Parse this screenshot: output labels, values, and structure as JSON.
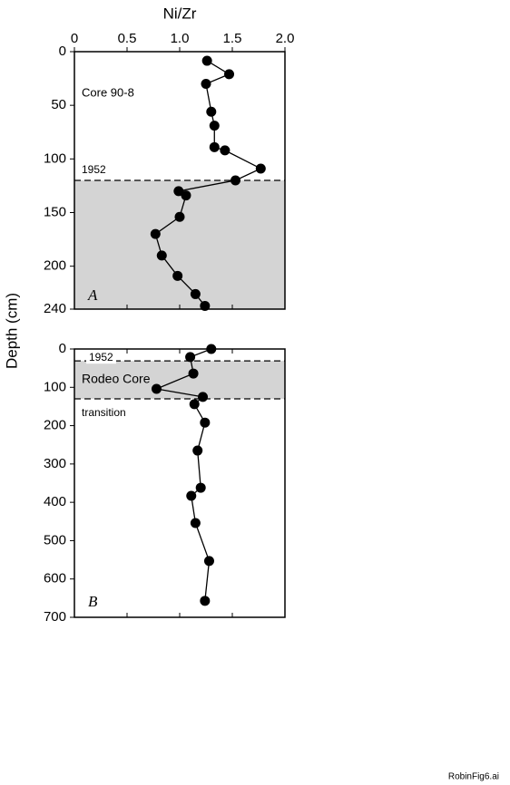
{
  "y_label": "Depth (cm)",
  "footer": "RobinFig6.ai",
  "chart_data": [
    {
      "type": "line",
      "x_label": "Ni/Zr",
      "panel_label": "A",
      "core_label": "Core 90-8",
      "xlim": [
        0,
        2
      ],
      "xticks": [
        0,
        0.5,
        {
          "value": 1,
          "label": "1.0"
        },
        1.5,
        {
          "value": 2,
          "label": "2.0"
        }
      ],
      "xtick_labels": true,
      "ylim": [
        0,
        240
      ],
      "y_inverted": true,
      "yticks": [
        0,
        50,
        100,
        150,
        200,
        240
      ],
      "shaded": [
        120,
        240
      ],
      "shade_color": "#d4d4d4",
      "reference_lines": [
        {
          "value": 120,
          "label": "1952"
        }
      ],
      "series": [
        {
          "color": "#000000",
          "x": [
            1.26,
            1.47,
            1.25,
            1.3,
            1.33,
            1.33,
            1.43,
            1.77,
            1.53,
            0.99,
            1.06,
            1.0,
            0.77,
            0.83,
            0.98,
            1.15,
            1.24
          ],
          "y": [
            8.5,
            21,
            30,
            56,
            69,
            89,
            92,
            109,
            120,
            130,
            134,
            154,
            170,
            190,
            209,
            226,
            237
          ]
        }
      ]
    },
    {
      "type": "line",
      "panel_label": "B",
      "core_label": "Rodeo Core",
      "xlim": [
        0,
        2
      ],
      "xticks": [
        0,
        0.5,
        1,
        1.5,
        2
      ],
      "xtick_labels": false,
      "ylim": [
        0,
        700
      ],
      "y_inverted": true,
      "yticks": [
        0,
        100,
        200,
        300,
        400,
        500,
        600,
        700
      ],
      "shaded": [
        31,
        130
      ],
      "shade_color": "#d4d4d4",
      "reference_lines": [
        {
          "value": 31,
          "label": "1952"
        },
        {
          "value": 130,
          "label": "transition"
        }
      ],
      "series": [
        {
          "color": "#000000",
          "x": [
            1.3,
            1.1,
            1.13,
            0.78,
            1.22,
            1.14,
            1.24,
            1.17,
            1.2,
            1.11,
            1.15,
            1.28,
            1.24
          ],
          "y": [
            0,
            21,
            64,
            104,
            125,
            144,
            192,
            265,
            362,
            383,
            454,
            553,
            657
          ]
        }
      ]
    }
  ]
}
